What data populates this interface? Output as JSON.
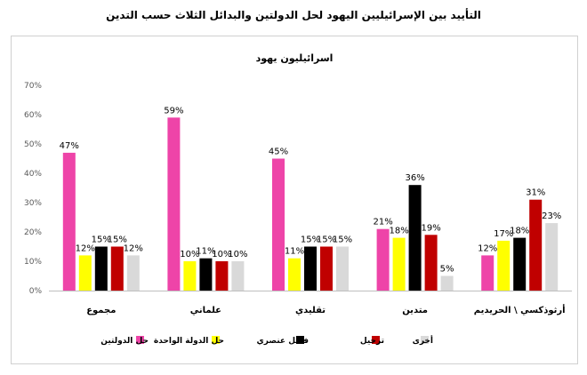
{
  "page": {
    "title": "التأييد بين الإسرائيليين اليهود لحل الدولتين والبدائل الثلاث حسب التدين"
  },
  "chart_data": {
    "type": "bar",
    "title": "اسرائيليون يهود",
    "categories": [
      "مجموع",
      "علماني",
      "تقليدي",
      "متدين",
      "أرثوذكسي \\ الحريديم"
    ],
    "series": [
      {
        "name": "حل الدولتين",
        "color": "#ee44a8",
        "values": [
          47,
          59,
          45,
          21,
          12
        ]
      },
      {
        "name": "حل الدولة الواحدة",
        "color": "#ffff00",
        "values": [
          12,
          10,
          11,
          18,
          17
        ]
      },
      {
        "name": "فصل عنصري",
        "color": "#000000",
        "values": [
          15,
          11,
          15,
          36,
          18
        ]
      },
      {
        "name": "ترحيل",
        "color": "#c00000",
        "values": [
          15,
          10,
          15,
          19,
          31
        ]
      },
      {
        "name": "أخرى",
        "color": "#d9d9d9",
        "values": [
          12,
          10,
          15,
          5,
          23
        ]
      }
    ],
    "y_ticks": [
      "0%",
      "10%",
      "20%",
      "30%",
      "40%",
      "50%",
      "60%",
      "70%"
    ],
    "ylim": [
      0,
      70
    ],
    "value_suffix": "%",
    "legend_position": "bottom",
    "grid": false
  }
}
